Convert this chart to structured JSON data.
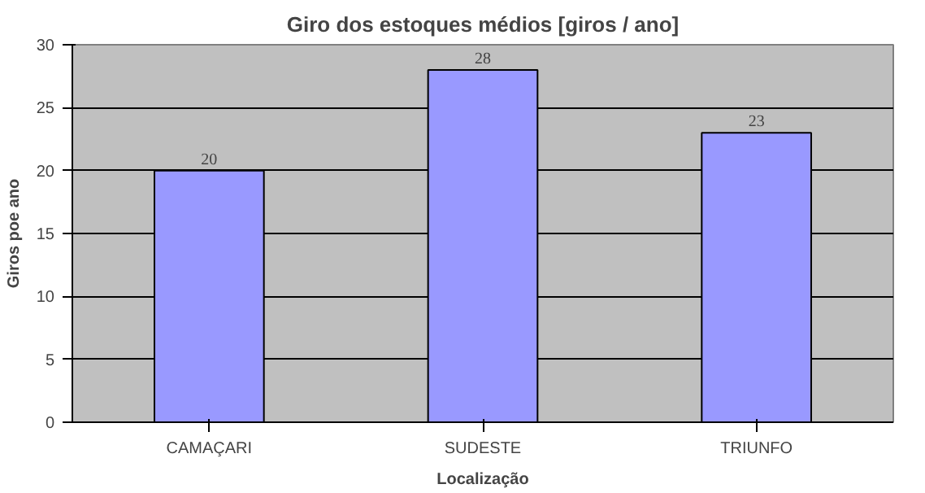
{
  "chart_data": {
    "type": "bar",
    "title": "Giro dos estoques médios [giros / ano]",
    "xlabel": "Localização",
    "ylabel": "Giros poe ano",
    "categories": [
      "CAMAÇARI",
      "SUDESTE",
      "TRIUNFO"
    ],
    "values": [
      20,
      28,
      23
    ],
    "color": "#9999ff",
    "ylim": [
      0,
      30
    ],
    "yticks": [
      0,
      5,
      10,
      15,
      20,
      25,
      30
    ],
    "grid": "y",
    "data_labels": true
  }
}
